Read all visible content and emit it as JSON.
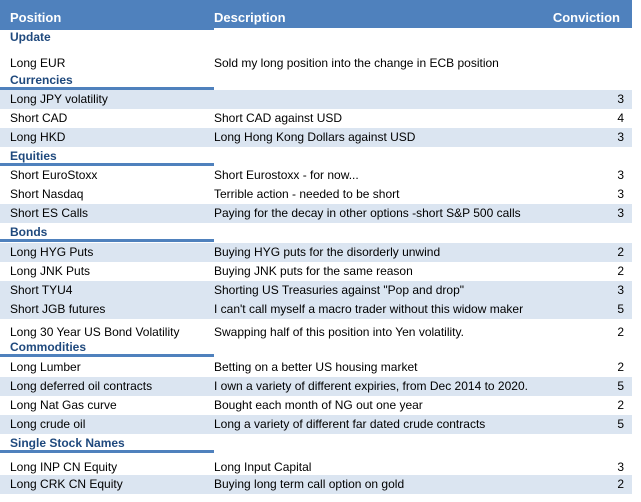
{
  "header": {
    "position": "Position",
    "description": "Description",
    "conviction": "Conviction"
  },
  "sections": [
    {
      "name": "Update",
      "rows": [
        {
          "position": "Long EUR",
          "description": "Sold my long position into the change in ECB position",
          "conviction": ""
        }
      ]
    },
    {
      "name": "Currencies",
      "rows": [
        {
          "position": "Long JPY volatility",
          "description": "",
          "conviction": "3"
        },
        {
          "position": "Short CAD",
          "description": "Short CAD against USD",
          "conviction": "4"
        },
        {
          "position": "Long HKD",
          "description": "Long Hong Kong Dollars against USD",
          "conviction": "3"
        }
      ]
    },
    {
      "name": "Equities",
      "rows": [
        {
          "position": "Short EuroStoxx",
          "description": "Short Eurostoxx - for now...",
          "conviction": "3"
        },
        {
          "position": "Short Nasdaq",
          "description": "Terrible action - needed to be short",
          "conviction": "3"
        },
        {
          "position": "Short ES Calls",
          "description": "Paying for the decay in other options -short S&P 500 calls",
          "conviction": "3"
        }
      ]
    },
    {
      "name": "Bonds",
      "rows": [
        {
          "position": "Long HYG Puts",
          "description": "Buying HYG puts for the disorderly unwind",
          "conviction": "2"
        },
        {
          "position": "Long JNK Puts",
          "description": "Buying JNK puts for the same reason",
          "conviction": "2"
        },
        {
          "position": "Short TYU4",
          "description": "Shorting US Treasuries against \"Pop and drop\"",
          "conviction": "3"
        },
        {
          "position": "Short JGB futures",
          "description": "I can't call myself a macro trader without this widow maker",
          "conviction": "5"
        },
        {
          "position": "Long 30 Year US Bond Volatility",
          "description": "Swapping half of this position into Yen volatility.",
          "conviction": "2"
        }
      ]
    },
    {
      "name": "Commodities",
      "rows": [
        {
          "position": "Long Lumber",
          "description": "Betting on a better US housing market",
          "conviction": "2"
        },
        {
          "position": "Long deferred oil contracts",
          "description": "I own a variety of different expiries, from Dec 2014 to 2020.",
          "conviction": "5"
        },
        {
          "position": "Long Nat Gas curve",
          "description": "Bought each month of NG out one year",
          "conviction": "2"
        },
        {
          "position": "Long crude oil",
          "description": "Long a variety of different far dated crude contracts",
          "conviction": "5"
        }
      ]
    },
    {
      "name": "Single Stock Names",
      "rows": [
        {
          "position": "Long INP CN Equity",
          "description": "Long Input Capital",
          "conviction": "3"
        },
        {
          "position": "Long CRK CN Equity",
          "description": "Buying long term call option on gold",
          "conviction": "2"
        }
      ]
    }
  ]
}
